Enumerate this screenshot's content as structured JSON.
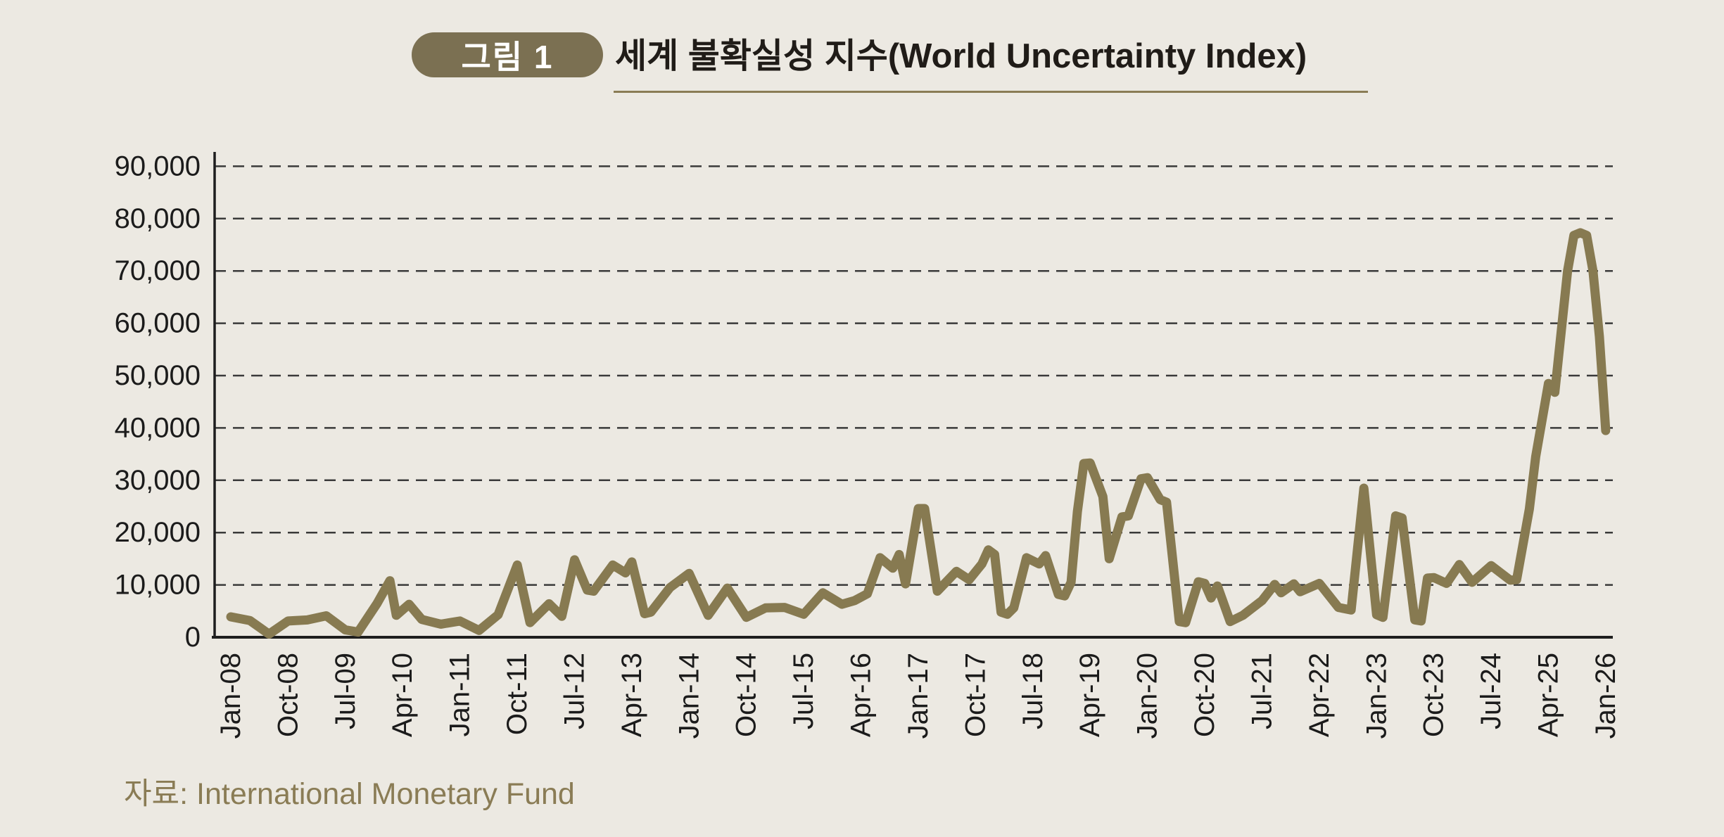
{
  "header": {
    "badge": "그림 1",
    "title": "세계 불확실성 지수(World Uncertainty Index)"
  },
  "source": {
    "label": "자료: International Monetary Fund"
  },
  "colors": {
    "background": "#ECE9E2",
    "line": "#877A51",
    "badge_bg": "#7B7052",
    "badge_text": "#FFFFFF",
    "title_text": "#201C18",
    "axis": "#1E1E1E",
    "gridline": "#3A3A3A",
    "tick_label": "#1B1B1B",
    "accent": "#8A7C55"
  },
  "chart_data": {
    "type": "line",
    "title": "세계 불확실성 지수(World Uncertainty Index)",
    "xlabel": "",
    "ylabel": "",
    "ylim": [
      0,
      90000
    ],
    "ytick_step": 10000,
    "ytick_labels": [
      "0",
      "10,000",
      "20,000",
      "30,000",
      "40,000",
      "50,000",
      "60,000",
      "70,000",
      "80,000",
      "90,000"
    ],
    "xtick_labels": [
      "Jan-08",
      "Oct-08",
      "Jul-09",
      "Apr-10",
      "Jan-11",
      "Oct-11",
      "Jul-12",
      "Apr-13",
      "Jan-14",
      "Oct-14",
      "Jul-15",
      "Apr-16",
      "Jan-17",
      "Oct-17",
      "Jul-18",
      "Apr-19",
      "Jan-20",
      "Oct-20",
      "Jul-21",
      "Apr-22",
      "Jan-23",
      "Oct-23",
      "Jul-24",
      "Apr-25",
      "Jan-26"
    ],
    "xtick_interval_months": 9,
    "grid": "dashed-horizontal",
    "legend": "none",
    "series": [
      {
        "name": "World Uncertainty Index",
        "points": [
          [
            "Jan-08",
            3900
          ],
          [
            "Apr-08",
            3200
          ],
          [
            "Jul-08",
            600
          ],
          [
            "Oct-08",
            3100
          ],
          [
            "Jan-09",
            3300
          ],
          [
            "Apr-09",
            4100
          ],
          [
            "Jul-09",
            1400
          ],
          [
            "Sep-09",
            1000
          ],
          [
            "Dec-09",
            6500
          ],
          [
            "Feb-10",
            10800
          ],
          [
            "Mar-10",
            4200
          ],
          [
            "May-10",
            6300
          ],
          [
            "Jul-10",
            3400
          ],
          [
            "Oct-10",
            2500
          ],
          [
            "Jan-11",
            3100
          ],
          [
            "Apr-11",
            1300
          ],
          [
            "Jul-11",
            4300
          ],
          [
            "Oct-11",
            13800
          ],
          [
            "Dec-11",
            2800
          ],
          [
            "Mar-12",
            6400
          ],
          [
            "May-12",
            4000
          ],
          [
            "Jul-12",
            14800
          ],
          [
            "Sep-12",
            9000
          ],
          [
            "Oct-12",
            8800
          ],
          [
            "Jan-13",
            13800
          ],
          [
            "Mar-13",
            12300
          ],
          [
            "Apr-13",
            14400
          ],
          [
            "Jun-13",
            4500
          ],
          [
            "Jul-13",
            4800
          ],
          [
            "Oct-13",
            9500
          ],
          [
            "Jan-14",
            12200
          ],
          [
            "Apr-14",
            4200
          ],
          [
            "Jul-14",
            9400
          ],
          [
            "Oct-14",
            3800
          ],
          [
            "Jan-15",
            5600
          ],
          [
            "Apr-15",
            5700
          ],
          [
            "Jul-15",
            4400
          ],
          [
            "Oct-15",
            8500
          ],
          [
            "Jan-16",
            6300
          ],
          [
            "Mar-16",
            7000
          ],
          [
            "May-16",
            8300
          ],
          [
            "Jul-16",
            15200
          ],
          [
            "Sep-16",
            13200
          ],
          [
            "Oct-16",
            15800
          ],
          [
            "Nov-16",
            10200
          ],
          [
            "Jan-17",
            24600
          ],
          [
            "Feb-17",
            24600
          ],
          [
            "Apr-17",
            8800
          ],
          [
            "Jul-17",
            12600
          ],
          [
            "Sep-17",
            11000
          ],
          [
            "Nov-17",
            14000
          ],
          [
            "Dec-17",
            16700
          ],
          [
            "Jan-18",
            15800
          ],
          [
            "Feb-18",
            4800
          ],
          [
            "Mar-18",
            4400
          ],
          [
            "Apr-18",
            5600
          ],
          [
            "Jun-18",
            15200
          ],
          [
            "Aug-18",
            14000
          ],
          [
            "Sep-18",
            15600
          ],
          [
            "Nov-18",
            8200
          ],
          [
            "Dec-18",
            7900
          ],
          [
            "Jan-19",
            10500
          ],
          [
            "Feb-19",
            24000
          ],
          [
            "Mar-19",
            33200
          ],
          [
            "Apr-19",
            33300
          ],
          [
            "Jun-19",
            26900
          ],
          [
            "Jul-19",
            15000
          ],
          [
            "Sep-19",
            23000
          ],
          [
            "Oct-19",
            23200
          ],
          [
            "Dec-19",
            30300
          ],
          [
            "Jan-20",
            30500
          ],
          [
            "Mar-20",
            26300
          ],
          [
            "Apr-20",
            25800
          ],
          [
            "Jun-20",
            3000
          ],
          [
            "Jul-20",
            2800
          ],
          [
            "Sep-20",
            10600
          ],
          [
            "Oct-20",
            10300
          ],
          [
            "Nov-20",
            7500
          ],
          [
            "Dec-20",
            9800
          ],
          [
            "Feb-21",
            3000
          ],
          [
            "Apr-21",
            4200
          ],
          [
            "Jul-21",
            7000
          ],
          [
            "Sep-21",
            10100
          ],
          [
            "Oct-21",
            8500
          ],
          [
            "Dec-21",
            10200
          ],
          [
            "Jan-22",
            8700
          ],
          [
            "Apr-22",
            10300
          ],
          [
            "Jul-22",
            5700
          ],
          [
            "Sep-22",
            5200
          ],
          [
            "Nov-22",
            28500
          ],
          [
            "Jan-23",
            4300
          ],
          [
            "Feb-23",
            3800
          ],
          [
            "Apr-23",
            23200
          ],
          [
            "May-23",
            22800
          ],
          [
            "Jul-23",
            3300
          ],
          [
            "Aug-23",
            3100
          ],
          [
            "Sep-23",
            11300
          ],
          [
            "Oct-23",
            11400
          ],
          [
            "Dec-23",
            10300
          ],
          [
            "Feb-24",
            13900
          ],
          [
            "Apr-24",
            10500
          ],
          [
            "Jul-24",
            13700
          ],
          [
            "Oct-24",
            10900
          ],
          [
            "Nov-24",
            11000
          ],
          [
            "Jan-25",
            24500
          ],
          [
            "Feb-25",
            34500
          ],
          [
            "Apr-25",
            48500
          ],
          [
            "May-25",
            46800
          ],
          [
            "Jul-25",
            70000
          ],
          [
            "Aug-25",
            76800
          ],
          [
            "Sep-25",
            77300
          ],
          [
            "Oct-25",
            76800
          ],
          [
            "Nov-25",
            70000
          ],
          [
            "Dec-25",
            57500
          ],
          [
            "Jan-26",
            39500
          ]
        ]
      }
    ]
  }
}
